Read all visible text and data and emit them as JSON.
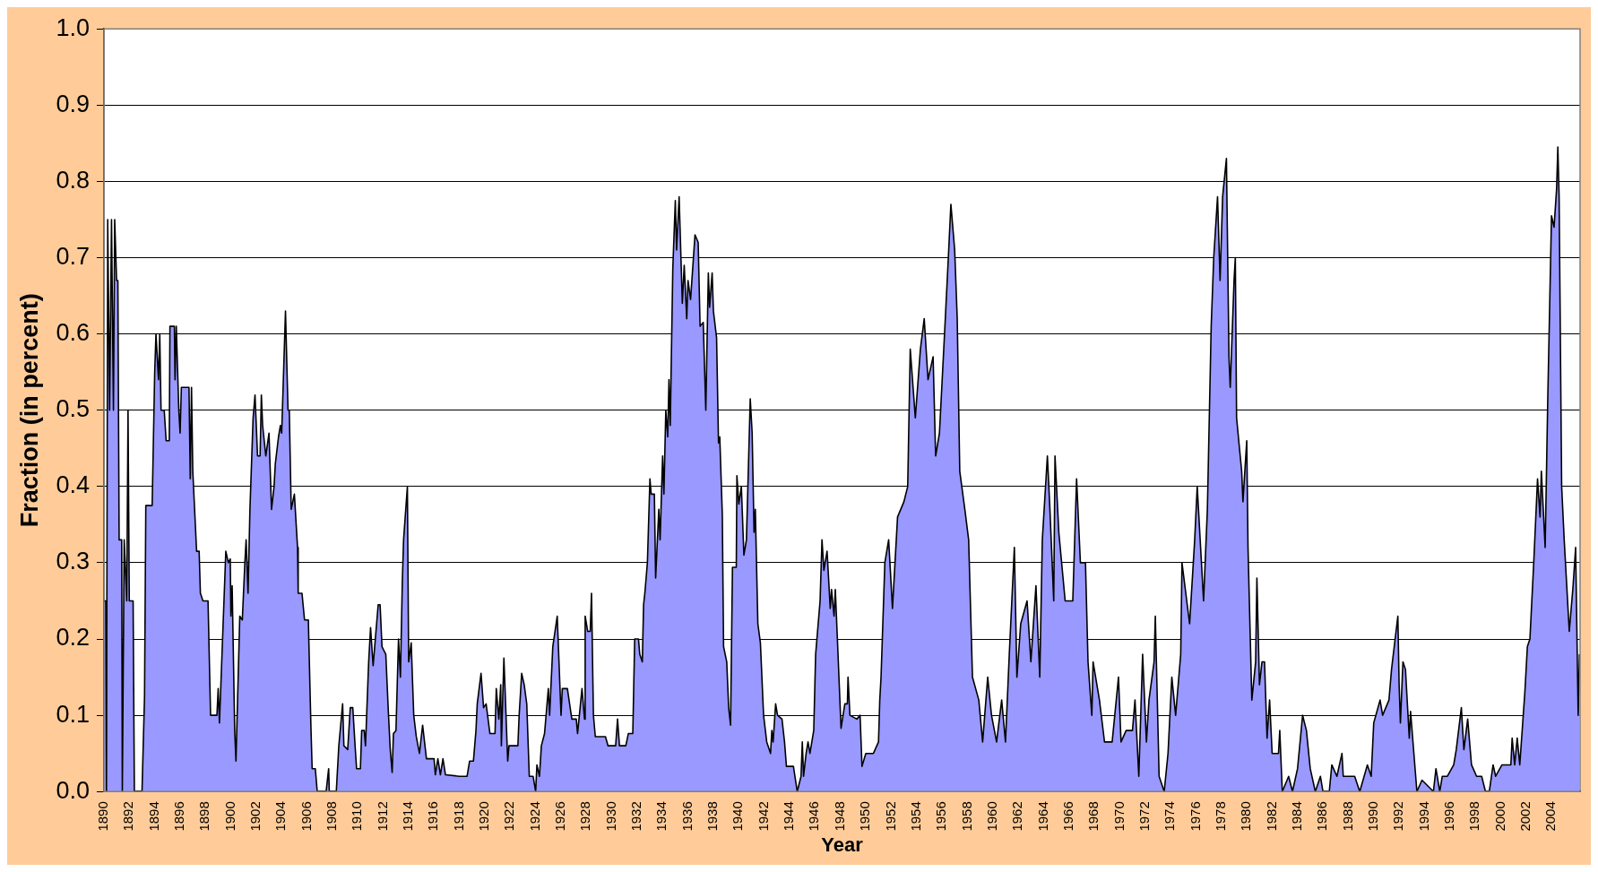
{
  "chart_data": {
    "type": "area",
    "xlabel": "Year",
    "ylabel": "Fraction (in percent)",
    "xlim": [
      1890,
      2006.25
    ],
    "xticks": [
      1890,
      1892,
      1894,
      1896,
      1898,
      1900,
      1902,
      1904,
      1906,
      1908,
      1910,
      1912,
      1914,
      1916,
      1918,
      1920,
      1922,
      1924,
      1926,
      1928,
      1930,
      1932,
      1934,
      1936,
      1938,
      1940,
      1942,
      1944,
      1946,
      1948,
      1950,
      1952,
      1954,
      1956,
      1958,
      1960,
      1962,
      1964,
      1966,
      1968,
      1970,
      1972,
      1974,
      1976,
      1978,
      1980,
      1982,
      1984,
      1986,
      1988,
      1990,
      1992,
      1994,
      1996,
      1998,
      2000,
      2002,
      2004
    ],
    "ylim": [
      0,
      1
    ],
    "yticks": [
      {
        "value": 0,
        "label": "0.0"
      },
      0.1,
      0.2,
      0.3,
      0.4,
      0.5,
      0.6,
      0.7,
      0.8,
      0.9,
      {
        "value": 1,
        "label": "1.0"
      }
    ],
    "grid": "y",
    "legend": false,
    "marker": "none",
    "series": [
      {
        "color": "#9999ff",
        "x": [
          1890.0,
          1890.15,
          1890.2,
          1890.3,
          1890.45,
          1890.6,
          1890.75,
          1890.85,
          1891.0,
          1891.1,
          1891.2,
          1891.4,
          1891.45,
          1891.6,
          1891.8,
          1891.9,
          1892.0,
          1892.3,
          1892.4,
          1893.0,
          1893.2,
          1893.3,
          1893.8,
          1894.0,
          1894.1,
          1894.3,
          1894.4,
          1894.5,
          1894.75,
          1894.9,
          1895.15,
          1895.2,
          1895.55,
          1895.6,
          1895.7,
          1895.9,
          1896.0,
          1896.1,
          1896.7,
          1896.8,
          1896.9,
          1897.0,
          1897.3,
          1897.5,
          1897.6,
          1897.8,
          1898.2,
          1898.4,
          1898.9,
          1899.0,
          1899.1,
          1899.6,
          1899.8,
          1899.95,
          1900.0,
          1900.1,
          1900.3,
          1900.4,
          1900.7,
          1900.9,
          1901.1,
          1901.2,
          1901.35,
          1901.5,
          1901.75,
          1901.9,
          1902.1,
          1902.3,
          1902.4,
          1902.5,
          1902.75,
          1903.0,
          1903.2,
          1903.4,
          1903.5,
          1903.75,
          1903.9,
          1904.0,
          1904.3,
          1904.5,
          1904.6,
          1904.75,
          1905.0,
          1905.25,
          1905.3,
          1905.6,
          1905.8,
          1906.1,
          1906.3,
          1906.4,
          1906.65,
          1906.8,
          1907.5,
          1907.7,
          1907.75,
          1908.3,
          1908.5,
          1908.8,
          1908.9,
          1909.2,
          1909.4,
          1909.6,
          1909.8,
          1909.9,
          1910.2,
          1910.3,
          1910.5,
          1910.6,
          1910.85,
          1911.0,
          1911.2,
          1911.6,
          1911.75,
          1911.9,
          1912.2,
          1912.4,
          1912.55,
          1912.7,
          1912.8,
          1913.0,
          1913.2,
          1913.35,
          1913.5,
          1913.6,
          1913.9,
          1914.0,
          1914.2,
          1914.4,
          1914.6,
          1914.85,
          1915.1,
          1915.4,
          1916.0,
          1916.1,
          1916.3,
          1916.5,
          1916.7,
          1916.9,
          1918.0,
          1918.6,
          1918.8,
          1919.1,
          1919.3,
          1919.4,
          1919.7,
          1919.9,
          1920.1,
          1920.4,
          1920.8,
          1920.9,
          1921.1,
          1921.25,
          1921.3,
          1921.5,
          1921.8,
          1921.9,
          1922.6,
          1922.7,
          1922.9,
          1923.1,
          1923.3,
          1923.5,
          1923.8,
          1924.0,
          1924.1,
          1924.3,
          1924.45,
          1924.7,
          1925.0,
          1925.1,
          1925.35,
          1925.7,
          1926.0,
          1926.1,
          1926.5,
          1926.85,
          1927.2,
          1927.3,
          1927.65,
          1927.85,
          1927.9,
          1928.1,
          1928.3,
          1928.4,
          1928.55,
          1928.7,
          1929.5,
          1929.7,
          1930.3,
          1930.45,
          1930.6,
          1931.1,
          1931.3,
          1931.65,
          1931.8,
          1932.1,
          1932.2,
          1932.4,
          1932.5,
          1932.6,
          1932.8,
          1933.0,
          1933.1,
          1933.35,
          1933.45,
          1933.7,
          1933.8,
          1934.0,
          1934.1,
          1934.25,
          1934.4,
          1934.5,
          1934.6,
          1934.8,
          1935.0,
          1935.1,
          1935.3,
          1935.55,
          1935.7,
          1935.9,
          1936.0,
          1936.2,
          1936.55,
          1936.8,
          1936.95,
          1937.2,
          1937.4,
          1937.6,
          1937.7,
          1937.9,
          1938.0,
          1938.25,
          1938.4,
          1938.5,
          1938.7,
          1938.8,
          1939.05,
          1939.2,
          1939.35,
          1939.5,
          1939.8,
          1939.85,
          1940.0,
          1940.2,
          1940.4,
          1940.6,
          1940.9,
          1941.05,
          1941.2,
          1941.3,
          1941.5,
          1941.7,
          1941.95,
          1942.2,
          1942.5,
          1942.6,
          1942.7,
          1942.9,
          1943.05,
          1943.4,
          1943.6,
          1943.75,
          1944.3,
          1944.6,
          1944.9,
          1945.0,
          1945.1,
          1945.3,
          1945.45,
          1945.6,
          1945.9,
          1946.05,
          1946.15,
          1946.4,
          1946.55,
          1946.7,
          1946.95,
          1947.2,
          1947.3,
          1947.5,
          1947.6,
          1947.8,
          1948.05,
          1948.35,
          1948.55,
          1948.6,
          1948.75,
          1949.3,
          1949.55,
          1949.7,
          1950.0,
          1950.6,
          1951.0,
          1951.1,
          1951.2,
          1951.5,
          1951.8,
          1952.1,
          1952.5,
          1953.0,
          1953.3,
          1953.5,
          1953.9,
          1954.3,
          1954.6,
          1954.9,
          1955.3,
          1955.5,
          1955.8,
          1956.2,
          1956.5,
          1956.7,
          1957.0,
          1957.2,
          1957.4,
          1957.8,
          1958.1,
          1958.4,
          1958.9,
          1959.2,
          1959.6,
          1959.9,
          1960.3,
          1960.7,
          1961.0,
          1961.3,
          1961.7,
          1961.9,
          1962.2,
          1962.7,
          1963.0,
          1963.4,
          1963.7,
          1963.9,
          1964.3,
          1964.5,
          1964.8,
          1964.9,
          1965.2,
          1965.7,
          1966.3,
          1966.6,
          1966.9,
          1967.3,
          1967.5,
          1967.8,
          1967.9,
          1968.4,
          1968.8,
          1969.4,
          1969.9,
          1970.1,
          1970.5,
          1971.0,
          1971.2,
          1971.5,
          1971.8,
          1972.1,
          1972.3,
          1972.7,
          1972.8,
          1973.1,
          1973.5,
          1973.8,
          1974.1,
          1974.4,
          1974.8,
          1974.9,
          1975.5,
          1975.9,
          1976.1,
          1976.6,
          1976.9,
          1977.2,
          1977.4,
          1977.7,
          1977.9,
          1978.1,
          1978.4,
          1978.6,
          1978.7,
          1979.0,
          1979.1,
          1979.2,
          1979.6,
          1979.7,
          1980.0,
          1980.1,
          1980.4,
          1980.7,
          1980.8,
          1981.0,
          1981.2,
          1981.4,
          1981.6,
          1981.8,
          1982.0,
          1982.5,
          1982.6,
          1982.8,
          1983.3,
          1983.6,
          1984.0,
          1984.4,
          1984.7,
          1985.0,
          1985.4,
          1985.8,
          1986.0,
          1986.5,
          1986.7,
          1987.1,
          1987.5,
          1987.6,
          1988.5,
          1988.9,
          1989.5,
          1989.8,
          1990.0,
          1990.5,
          1990.7,
          1991.2,
          1991.4,
          1991.9,
          1992.0,
          1992.1,
          1992.3,
          1992.5,
          1992.8,
          1992.9,
          1993.4,
          1993.8,
          1994.7,
          1994.9,
          1995.2,
          1995.4,
          1995.8,
          1996.3,
          1996.5,
          1996.9,
          1997.1,
          1997.4,
          1997.7,
          1998.1,
          1998.5,
          1998.8,
          1999.1,
          1999.4,
          1999.6,
          2000.1,
          2000.8,
          2000.9,
          2001.1,
          2001.3,
          2001.5,
          2001.9,
          2002.1,
          2002.3,
          2002.6,
          2002.9,
          2003.1,
          2003.2,
          2003.5,
          2003.7,
          2004.0,
          2004.2,
          2004.4,
          2004.5,
          2004.6,
          2004.8,
          2005.0,
          2005.4,
          2005.7,
          2005.9,
          2006.1,
          2006.2
        ],
        "values": [
          0.25,
          0.25,
          0,
          0.75,
          0.5,
          0.75,
          0.5,
          0.75,
          0.67,
          0.67,
          0.33,
          0.33,
          0,
          0.33,
          0.25,
          0.5,
          0.25,
          0.25,
          0,
          0,
          0.125,
          0.375,
          0.375,
          0.55,
          0.6,
          0.54,
          0.6,
          0.5,
          0.5,
          0.46,
          0.46,
          0.61,
          0.61,
          0.54,
          0.61,
          0.5,
          0.47,
          0.53,
          0.53,
          0.41,
          0.53,
          0.42,
          0.315,
          0.315,
          0.26,
          0.25,
          0.25,
          0.1,
          0.1,
          0.135,
          0.09,
          0.315,
          0.3,
          0.305,
          0.23,
          0.27,
          0.08,
          0.04,
          0.23,
          0.225,
          0.3,
          0.33,
          0.26,
          0.37,
          0.49,
          0.52,
          0.44,
          0.44,
          0.52,
          0.48,
          0.44,
          0.47,
          0.37,
          0.4,
          0.43,
          0.465,
          0.48,
          0.47,
          0.63,
          0.5,
          0.5,
          0.37,
          0.39,
          0.32,
          0.26,
          0.26,
          0.225,
          0.225,
          0.087,
          0.03,
          0.03,
          0,
          0,
          0.03,
          0,
          0,
          0.06,
          0.115,
          0.06,
          0.055,
          0.11,
          0.11,
          0.055,
          0.03,
          0.03,
          0.08,
          0.08,
          0.06,
          0.17,
          0.215,
          0.165,
          0.245,
          0.245,
          0.19,
          0.18,
          0.105,
          0.055,
          0.025,
          0.076,
          0.08,
          0.2,
          0.15,
          0.275,
          0.33,
          0.4,
          0.17,
          0.195,
          0.1,
          0.072,
          0.05,
          0.087,
          0.043,
          0.043,
          0.022,
          0.043,
          0.022,
          0.043,
          0.022,
          0.02,
          0.02,
          0.04,
          0.04,
          0.08,
          0.115,
          0.155,
          0.11,
          0.115,
          0.076,
          0.076,
          0.135,
          0.095,
          0.14,
          0.06,
          0.175,
          0.04,
          0.06,
          0.06,
          0.1,
          0.155,
          0.14,
          0.115,
          0.02,
          0.02,
          0,
          0.035,
          0.02,
          0.06,
          0.076,
          0.135,
          0.1,
          0.19,
          0.23,
          0.1,
          0.135,
          0.135,
          0.095,
          0.095,
          0.076,
          0.135,
          0.095,
          0.23,
          0.21,
          0.21,
          0.26,
          0.1,
          0.072,
          0.072,
          0.06,
          0.06,
          0.095,
          0.06,
          0.06,
          0.076,
          0.076,
          0.2,
          0.2,
          0.18,
          0.17,
          0.245,
          0.26,
          0.3,
          0.41,
          0.39,
          0.39,
          0.28,
          0.37,
          0.33,
          0.44,
          0.39,
          0.5,
          0.465,
          0.54,
          0.48,
          0.685,
          0.775,
          0.71,
          0.78,
          0.64,
          0.69,
          0.62,
          0.67,
          0.645,
          0.73,
          0.72,
          0.61,
          0.615,
          0.5,
          0.68,
          0.635,
          0.68,
          0.63,
          0.595,
          0.457,
          0.465,
          0.363,
          0.19,
          0.17,
          0.11,
          0.087,
          0.294,
          0.294,
          0.414,
          0.377,
          0.4,
          0.31,
          0.33,
          0.515,
          0.47,
          0.34,
          0.37,
          0.22,
          0.195,
          0.1,
          0.065,
          0.05,
          0.08,
          0.065,
          0.115,
          0.1,
          0.095,
          0.065,
          0.033,
          0.033,
          0,
          0.02,
          0.065,
          0.02,
          0.05,
          0.065,
          0.05,
          0.08,
          0.18,
          0.2,
          0.25,
          0.33,
          0.29,
          0.315,
          0.24,
          0.265,
          0.23,
          0.265,
          0.185,
          0.083,
          0.115,
          0.115,
          0.15,
          0.1,
          0.095,
          0.1,
          0.033,
          0.05,
          0.05,
          0.065,
          0.12,
          0.15,
          0.3,
          0.33,
          0.24,
          0.36,
          0.38,
          0.4,
          0.58,
          0.49,
          0.58,
          0.62,
          0.54,
          0.57,
          0.44,
          0.47,
          0.6,
          0.7,
          0.77,
          0.71,
          0.62,
          0.42,
          0.37,
          0.33,
          0.15,
          0.12,
          0.065,
          0.15,
          0.1,
          0.065,
          0.12,
          0.065,
          0.18,
          0.32,
          0.15,
          0.22,
          0.25,
          0.17,
          0.27,
          0.15,
          0.33,
          0.44,
          0.37,
          0.25,
          0.44,
          0.34,
          0.25,
          0.25,
          0.41,
          0.3,
          0.3,
          0.17,
          0.1,
          0.17,
          0.12,
          0.065,
          0.065,
          0.15,
          0.065,
          0.08,
          0.08,
          0.12,
          0.02,
          0.18,
          0.065,
          0.12,
          0.17,
          0.23,
          0.02,
          0,
          0.05,
          0.15,
          0.1,
          0.18,
          0.3,
          0.22,
          0.33,
          0.4,
          0.25,
          0.37,
          0.61,
          0.7,
          0.78,
          0.67,
          0.78,
          0.83,
          0.57,
          0.53,
          0.67,
          0.7,
          0.49,
          0.42,
          0.38,
          0.46,
          0.32,
          0.12,
          0.17,
          0.28,
          0.14,
          0.17,
          0.17,
          0.07,
          0.12,
          0.05,
          0.05,
          0.08,
          0,
          0.02,
          0,
          0.03,
          0.1,
          0.08,
          0.03,
          0,
          0.02,
          0,
          0,
          0.035,
          0.02,
          0.05,
          0.02,
          0.02,
          0,
          0.035,
          0.02,
          0.09,
          0.12,
          0.1,
          0.12,
          0.16,
          0.23,
          0.14,
          0.09,
          0.17,
          0.16,
          0.07,
          0.105,
          0,
          0.015,
          0,
          0.03,
          0,
          0.02,
          0.02,
          0.035,
          0.055,
          0.11,
          0.055,
          0.095,
          0.035,
          0.02,
          0.02,
          0,
          0,
          0.035,
          0.02,
          0.035,
          0.035,
          0.07,
          0.035,
          0.07,
          0.035,
          0.13,
          0.19,
          0.2,
          0.3,
          0.41,
          0.36,
          0.42,
          0.32,
          0.51,
          0.755,
          0.74,
          0.79,
          0.845,
          0.78,
          0.4,
          0.33,
          0.21,
          0.27,
          0.32,
          0.1,
          0.18
        ]
      }
    ]
  }
}
